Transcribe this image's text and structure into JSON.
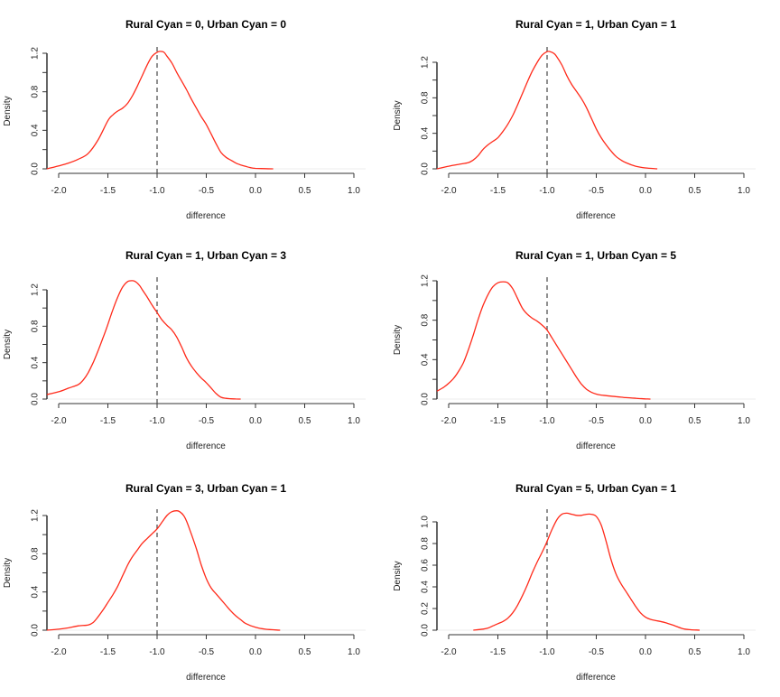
{
  "chart_data": [
    {
      "type": "line",
      "title": "Rural Cyan = 0, Urban Cyan = 0",
      "xlabel": "difference",
      "ylabel": "Density",
      "xlim": [
        -2.12,
        1.1
      ],
      "ylim": [
        0,
        1.26
      ],
      "xticks": [
        "-2.0",
        "-1.5",
        "-1.0",
        "-0.5",
        "0.0",
        "0.5",
        "1.0"
      ],
      "yticks": [
        "0.0",
        "0.4",
        "0.8",
        "1.2"
      ],
      "yminor": [
        0.2,
        0.6,
        1.0
      ],
      "reference_line_x": -1.0,
      "series": [
        {
          "name": "density",
          "color": "#ff2a1a",
          "x": [
            -2.12,
            -2.0,
            -1.9,
            -1.8,
            -1.7,
            -1.6,
            -1.5,
            -1.45,
            -1.4,
            -1.35,
            -1.3,
            -1.25,
            -1.2,
            -1.15,
            -1.1,
            -1.05,
            -1.0,
            -0.97,
            -0.93,
            -0.9,
            -0.85,
            -0.8,
            -0.75,
            -0.7,
            -0.65,
            -0.6,
            -0.55,
            -0.5,
            -0.45,
            -0.4,
            -0.35,
            -0.3,
            -0.25,
            -0.2,
            -0.15,
            -0.1,
            -0.05,
            0.0,
            0.1,
            0.18
          ],
          "y": [
            0.0,
            0.03,
            0.06,
            0.1,
            0.16,
            0.3,
            0.5,
            0.56,
            0.6,
            0.63,
            0.68,
            0.76,
            0.86,
            0.97,
            1.08,
            1.17,
            1.21,
            1.22,
            1.21,
            1.17,
            1.1,
            1.0,
            0.91,
            0.82,
            0.72,
            0.63,
            0.54,
            0.46,
            0.36,
            0.26,
            0.17,
            0.12,
            0.09,
            0.06,
            0.04,
            0.025,
            0.012,
            0.005,
            0.002,
            0.0
          ]
        }
      ]
    },
    {
      "type": "line",
      "title": "Rural Cyan = 1, Urban Cyan = 1",
      "xlabel": "difference",
      "ylabel": "Density",
      "xlim": [
        -2.12,
        1.1
      ],
      "ylim": [
        0,
        1.34
      ],
      "xticks": [
        "-2.0",
        "-1.5",
        "-1.0",
        "-0.5",
        "0.0",
        "0.5",
        "1.0"
      ],
      "yticks": [
        "0.0",
        "0.4",
        "0.8",
        "1.2"
      ],
      "yminor": [
        0.2,
        0.6,
        1.0
      ],
      "reference_line_x": -1.0,
      "series": [
        {
          "name": "density",
          "color": "#ff2a1a",
          "x": [
            -2.12,
            -2.0,
            -1.9,
            -1.8,
            -1.75,
            -1.7,
            -1.65,
            -1.6,
            -1.55,
            -1.5,
            -1.45,
            -1.4,
            -1.35,
            -1.3,
            -1.25,
            -1.2,
            -1.15,
            -1.1,
            -1.05,
            -1.0,
            -0.97,
            -0.93,
            -0.9,
            -0.85,
            -0.8,
            -0.75,
            -0.7,
            -0.65,
            -0.6,
            -0.55,
            -0.5,
            -0.45,
            -0.4,
            -0.35,
            -0.3,
            -0.25,
            -0.2,
            -0.1,
            0.0,
            0.12
          ],
          "y": [
            0.0,
            0.03,
            0.05,
            0.07,
            0.1,
            0.15,
            0.22,
            0.27,
            0.31,
            0.35,
            0.42,
            0.5,
            0.6,
            0.72,
            0.85,
            0.98,
            1.1,
            1.2,
            1.28,
            1.32,
            1.32,
            1.3,
            1.26,
            1.17,
            1.05,
            0.95,
            0.87,
            0.79,
            0.69,
            0.57,
            0.45,
            0.35,
            0.27,
            0.2,
            0.14,
            0.1,
            0.07,
            0.03,
            0.01,
            0.0
          ]
        }
      ]
    },
    {
      "type": "line",
      "title": "Rural Cyan = 1, Urban Cyan = 3",
      "xlabel": "difference",
      "ylabel": "Density",
      "xlim": [
        -2.12,
        1.1
      ],
      "ylim": [
        0,
        1.34
      ],
      "xticks": [
        "-2.0",
        "-1.5",
        "-1.0",
        "-0.5",
        "0.0",
        "0.5",
        "1.0"
      ],
      "yticks": [
        "0.0",
        "0.4",
        "0.8",
        "1.2"
      ],
      "yminor": [
        0.2,
        0.6,
        1.0
      ],
      "reference_line_x": -1.0,
      "series": [
        {
          "name": "density",
          "color": "#ff2a1a",
          "x": [
            -2.12,
            -2.0,
            -1.9,
            -1.8,
            -1.75,
            -1.7,
            -1.65,
            -1.6,
            -1.55,
            -1.5,
            -1.45,
            -1.4,
            -1.35,
            -1.3,
            -1.25,
            -1.22,
            -1.18,
            -1.15,
            -1.1,
            -1.05,
            -1.0,
            -0.95,
            -0.9,
            -0.85,
            -0.8,
            -0.75,
            -0.7,
            -0.65,
            -0.6,
            -0.55,
            -0.5,
            -0.45,
            -0.4,
            -0.35,
            -0.3,
            -0.25,
            -0.2,
            -0.15
          ],
          "y": [
            0.05,
            0.08,
            0.12,
            0.16,
            0.21,
            0.29,
            0.4,
            0.53,
            0.67,
            0.82,
            0.98,
            1.12,
            1.23,
            1.29,
            1.3,
            1.29,
            1.25,
            1.2,
            1.12,
            1.03,
            0.95,
            0.87,
            0.81,
            0.76,
            0.68,
            0.57,
            0.45,
            0.36,
            0.29,
            0.23,
            0.18,
            0.12,
            0.06,
            0.02,
            0.008,
            0.003,
            0.001,
            0.0
          ]
        }
      ]
    },
    {
      "type": "line",
      "title": "Rural Cyan = 1, Urban Cyan = 5",
      "xlabel": "difference",
      "ylabel": "Density",
      "xlim": [
        -2.12,
        1.1
      ],
      "ylim": [
        0,
        1.25
      ],
      "xticks": [
        "-2.0",
        "-1.5",
        "-1.0",
        "-0.5",
        "0.0",
        "0.5",
        "1.0"
      ],
      "yticks": [
        "0.0",
        "0.4",
        "0.8",
        "1.2"
      ],
      "yminor": [
        0.2,
        0.6,
        1.0
      ],
      "reference_line_x": -1.0,
      "series": [
        {
          "name": "density",
          "color": "#ff2a1a",
          "x": [
            -2.12,
            -2.05,
            -2.0,
            -1.95,
            -1.9,
            -1.85,
            -1.8,
            -1.75,
            -1.7,
            -1.65,
            -1.6,
            -1.55,
            -1.5,
            -1.45,
            -1.4,
            -1.35,
            -1.3,
            -1.25,
            -1.2,
            -1.15,
            -1.1,
            -1.05,
            -1.0,
            -0.95,
            -0.9,
            -0.85,
            -0.8,
            -0.75,
            -0.7,
            -0.65,
            -0.6,
            -0.55,
            -0.5,
            -0.45,
            -0.4,
            -0.3,
            -0.2,
            -0.1,
            0.0,
            0.05
          ],
          "y": [
            0.08,
            0.12,
            0.16,
            0.21,
            0.28,
            0.37,
            0.5,
            0.65,
            0.81,
            0.95,
            1.06,
            1.14,
            1.18,
            1.19,
            1.18,
            1.12,
            1.02,
            0.92,
            0.86,
            0.82,
            0.79,
            0.75,
            0.7,
            0.62,
            0.54,
            0.46,
            0.38,
            0.3,
            0.22,
            0.15,
            0.1,
            0.07,
            0.05,
            0.04,
            0.035,
            0.025,
            0.015,
            0.008,
            0.002,
            0.0
          ]
        }
      ]
    },
    {
      "type": "line",
      "title": "Rural Cyan = 3, Urban Cyan = 1",
      "xlabel": "difference",
      "ylabel": "Density",
      "xlim": [
        -2.12,
        1.1
      ],
      "ylim": [
        0,
        1.3
      ],
      "xticks": [
        "-2.0",
        "-1.5",
        "-1.0",
        "-0.5",
        "0.0",
        "0.5",
        "1.0"
      ],
      "yticks": [
        "0.0",
        "0.4",
        "0.8",
        "1.2"
      ],
      "yminor": [
        0.2,
        0.6,
        1.0
      ],
      "reference_line_x": -1.0,
      "series": [
        {
          "name": "density",
          "color": "#ff2a1a",
          "x": [
            -2.12,
            -2.0,
            -1.9,
            -1.8,
            -1.7,
            -1.65,
            -1.6,
            -1.55,
            -1.5,
            -1.45,
            -1.4,
            -1.35,
            -1.3,
            -1.25,
            -1.2,
            -1.15,
            -1.1,
            -1.05,
            -1.0,
            -0.95,
            -0.9,
            -0.85,
            -0.8,
            -0.77,
            -0.73,
            -0.7,
            -0.65,
            -0.6,
            -0.55,
            -0.5,
            -0.45,
            -0.4,
            -0.35,
            -0.3,
            -0.25,
            -0.2,
            -0.15,
            -0.1,
            0.0,
            0.1,
            0.25
          ],
          "y": [
            0.0,
            0.01,
            0.025,
            0.045,
            0.055,
            0.08,
            0.14,
            0.21,
            0.29,
            0.37,
            0.46,
            0.57,
            0.68,
            0.77,
            0.84,
            0.91,
            0.96,
            1.01,
            1.06,
            1.13,
            1.2,
            1.24,
            1.25,
            1.24,
            1.2,
            1.14,
            1.0,
            0.85,
            0.68,
            0.54,
            0.44,
            0.38,
            0.32,
            0.26,
            0.2,
            0.15,
            0.11,
            0.07,
            0.03,
            0.01,
            0.0
          ]
        }
      ]
    },
    {
      "type": "line",
      "title": "Rural Cyan = 5, Urban Cyan = 1",
      "xlabel": "difference",
      "ylabel": "Density",
      "xlim": [
        -2.12,
        1.1
      ],
      "ylim": [
        0,
        1.12
      ],
      "xticks": [
        "-2.0",
        "-1.5",
        "-1.0",
        "-0.5",
        "0.0",
        "0.5",
        "1.0"
      ],
      "yticks": [
        "0.0",
        "0.2",
        "0.4",
        "0.6",
        "0.8",
        "1.0"
      ],
      "yminor": [],
      "reference_line_x": -1.0,
      "series": [
        {
          "name": "density",
          "color": "#ff2a1a",
          "x": [
            -1.75,
            -1.65,
            -1.6,
            -1.55,
            -1.5,
            -1.45,
            -1.4,
            -1.35,
            -1.3,
            -1.25,
            -1.2,
            -1.15,
            -1.1,
            -1.05,
            -1.0,
            -0.95,
            -0.9,
            -0.85,
            -0.8,
            -0.75,
            -0.7,
            -0.65,
            -0.6,
            -0.55,
            -0.5,
            -0.45,
            -0.4,
            -0.35,
            -0.3,
            -0.25,
            -0.2,
            -0.15,
            -0.1,
            -0.05,
            0.0,
            0.05,
            0.1,
            0.2,
            0.3,
            0.4,
            0.55
          ],
          "y": [
            0.0,
            0.01,
            0.02,
            0.04,
            0.06,
            0.08,
            0.11,
            0.16,
            0.23,
            0.32,
            0.42,
            0.53,
            0.63,
            0.72,
            0.82,
            0.93,
            1.02,
            1.07,
            1.08,
            1.07,
            1.06,
            1.06,
            1.07,
            1.07,
            1.05,
            0.97,
            0.82,
            0.65,
            0.52,
            0.43,
            0.36,
            0.29,
            0.22,
            0.16,
            0.12,
            0.1,
            0.09,
            0.07,
            0.04,
            0.01,
            0.0
          ]
        }
      ]
    }
  ]
}
